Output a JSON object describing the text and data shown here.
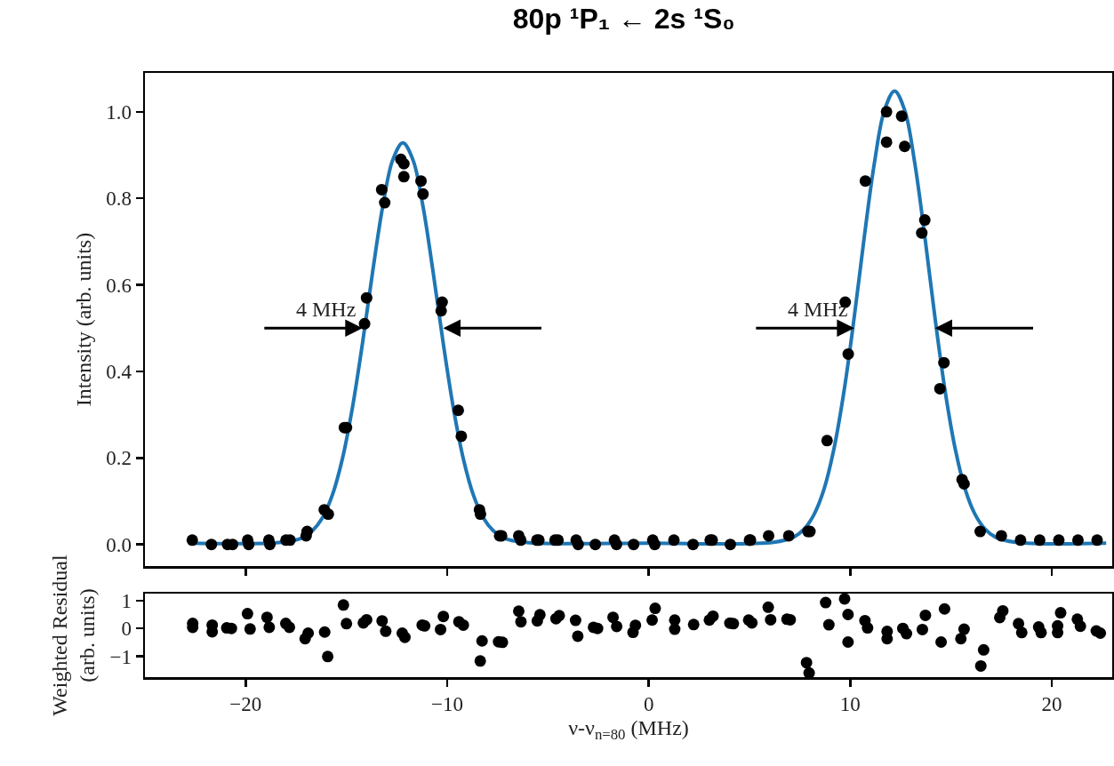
{
  "chart_data": [
    {
      "type": "scatter",
      "title": "80p ¹P₁ ← 2s ¹S₀",
      "ylabel": "Intensity (arb. units)",
      "xlim": [
        -25,
        23
      ],
      "xticks": [
        {
          "value": -20,
          "label": null
        },
        {
          "value": -10,
          "label": null
        },
        {
          "value": 0,
          "label": null
        },
        {
          "value": 10,
          "label": null
        },
        {
          "value": 20,
          "label": null
        }
      ],
      "ylim": [
        -0.05,
        1.09
      ],
      "yticks": [
        {
          "value": 0,
          "label": "0.0"
        },
        {
          "value": 0.2,
          "label": "0.2"
        },
        {
          "value": 0.4,
          "label": "0.4"
        },
        {
          "value": 0.6,
          "label": "0.6"
        },
        {
          "value": 0.8,
          "label": "0.8"
        },
        {
          "value": 1,
          "label": "1.0"
        }
      ],
      "tick_labels": "y",
      "grid": false,
      "annotations": [
        {
          "text": "4 MHz",
          "x": -14.2,
          "y": 0.5
        },
        {
          "text": "4 MHz",
          "x": 10.2,
          "y": 0.5
        }
      ],
      "series": [
        {
          "marker": "circle",
          "color": "#000000",
          "x": [
            -22.65,
            -21.7,
            -20.9,
            -20.65,
            -19.9,
            -19.85,
            -18.85,
            -18.8,
            -18.0,
            -17.8,
            -17.0,
            -16.95,
            -16.1,
            -15.9,
            -15.1,
            -15.0,
            -14.1,
            -14.0,
            -13.25,
            -13.1,
            -12.3,
            -12.15,
            -12.15,
            -11.3,
            -11.2,
            -10.3,
            -10.25,
            -9.45,
            -9.3,
            -8.4,
            -8.35,
            -7.4,
            -7.3,
            -6.45,
            -6.35,
            -5.55,
            -5.45,
            -4.65,
            -4.5,
            -3.6,
            -3.5,
            -2.65,
            -1.7,
            -1.6,
            -0.75,
            0.2,
            0.3,
            1.25,
            2.2,
            3.05,
            3.15,
            4.05,
            5.0,
            5.05,
            5.95,
            6.95,
            7.9,
            8.0,
            8.85,
            9.75,
            9.9,
            10.75,
            11.8,
            11.8,
            12.55,
            12.7,
            13.55,
            13.7,
            14.45,
            14.65,
            15.55,
            15.65,
            16.45,
            17.5,
            18.45,
            19.4,
            20.35,
            21.3,
            22.25
          ],
          "values": [
            0.01,
            0.0,
            0.0,
            0.0,
            0.01,
            0.0,
            0.01,
            0.0,
            0.01,
            0.01,
            0.02,
            0.03,
            0.08,
            0.07,
            0.27,
            0.27,
            0.51,
            0.57,
            0.82,
            0.79,
            0.89,
            0.88,
            0.85,
            0.84,
            0.81,
            0.54,
            0.56,
            0.31,
            0.25,
            0.08,
            0.07,
            0.02,
            0.02,
            0.02,
            0.01,
            0.01,
            0.01,
            0.01,
            0.01,
            0.01,
            0.0,
            0.0,
            0.01,
            0.0,
            0.0,
            0.01,
            0.0,
            0.01,
            0.0,
            0.01,
            0.01,
            0.0,
            0.01,
            0.01,
            0.02,
            0.02,
            0.03,
            0.03,
            0.24,
            0.56,
            0.44,
            0.84,
            1.0,
            0.93,
            0.99,
            0.92,
            0.72,
            0.75,
            0.36,
            0.42,
            0.15,
            0.14,
            0.03,
            0.02,
            0.01,
            0.01,
            0.01,
            0.01,
            0.01
          ]
        },
        {
          "type": "line",
          "color": "#1f77b4",
          "x": [
            -22.7,
            -18.2,
            -17.2,
            -16.7,
            -16.2,
            -15.7,
            -15.2,
            -14.7,
            -14.2,
            -13.7,
            -13.2,
            -12.7,
            -12.2,
            -11.7,
            -11.2,
            -10.7,
            -10.2,
            -9.7,
            -9.2,
            -8.7,
            -8.2,
            -7.7,
            -7.2,
            -6.2,
            0,
            6.2,
            7.2,
            7.7,
            8.2,
            8.7,
            9.2,
            9.7,
            10.2,
            10.7,
            11.2,
            11.7,
            12.2,
            12.7,
            13.2,
            13.7,
            14.2,
            14.7,
            15.2,
            15.7,
            16.2,
            16.7,
            17.2,
            18.2,
            22.7
          ],
          "values": [
            0.003,
            0.005,
            0.015,
            0.031,
            0.061,
            0.114,
            0.198,
            0.317,
            0.466,
            0.63,
            0.781,
            0.889,
            0.928,
            0.889,
            0.781,
            0.63,
            0.466,
            0.317,
            0.198,
            0.114,
            0.061,
            0.031,
            0.015,
            0.005,
            0.003,
            0.005,
            0.017,
            0.035,
            0.069,
            0.128,
            0.223,
            0.357,
            0.526,
            0.712,
            0.882,
            1.004,
            1.048,
            1.004,
            0.882,
            0.712,
            0.526,
            0.357,
            0.223,
            0.128,
            0.069,
            0.035,
            0.017,
            0.005,
            0.003
          ]
        }
      ]
    },
    {
      "type": "scatter",
      "xlabel": "ν-ν$_{n=80}$ (MHz)",
      "ylabel": "Weighted Residual\n(arb. units)",
      "xlim": [
        -25,
        23
      ],
      "xticks": [
        {
          "value": -20,
          "label": "−20"
        },
        {
          "value": -10,
          "label": "−10"
        },
        0,
        10,
        20
      ],
      "ylim": [
        -1.75,
        1.25
      ],
      "yticks": [
        {
          "value": -1,
          "label": "−1"
        },
        0,
        1
      ],
      "grid": false,
      "marker": "circle",
      "series": [
        {
          "color": "#000000",
          "x": [
            -22.63,
            -22.63,
            -21.66,
            -21.66,
            -20.94,
            -20.71,
            -19.91,
            -19.78,
            -18.94,
            -18.83,
            -18.01,
            -17.83,
            -17.05,
            -16.9,
            -16.08,
            -15.93,
            -15.15,
            -15.0,
            -14.16,
            -14.0,
            -13.23,
            -13.05,
            -12.23,
            -12.1,
            -11.24,
            -11.12,
            -10.19,
            -10.33,
            -9.42,
            -9.2,
            -8.27,
            -8.36,
            -7.45,
            -7.26,
            -6.45,
            -6.34,
            -5.4,
            -5.53,
            -4.44,
            -4.6,
            -3.63,
            -3.52,
            -2.74,
            -2.54,
            -1.77,
            -1.59,
            -0.66,
            -0.78,
            0.32,
            0.17,
            1.29,
            1.29,
            2.23,
            3.01,
            3.19,
            4.03,
            4.2,
            4.96,
            5.12,
            5.93,
            6.05,
            6.86,
            7.02,
            7.83,
            7.96,
            8.78,
            8.94,
            9.72,
            9.89,
            9.89,
            10.73,
            10.86,
            11.83,
            11.83,
            12.61,
            12.79,
            13.73,
            13.58,
            14.68,
            14.51,
            15.65,
            15.49,
            16.62,
            16.48,
            17.57,
            17.42,
            18.35,
            18.51,
            19.35,
            19.47,
            20.44,
            20.29,
            20.29,
            21.27,
            21.42,
            22.21,
            22.41
          ],
          "values": [
            0.18,
            0.04,
            0.12,
            -0.12,
            0.02,
            0.0,
            0.53,
            -0.02,
            0.4,
            0.04,
            0.18,
            0.04,
            -0.37,
            -0.17,
            -0.13,
            -1.01,
            0.84,
            0.17,
            0.2,
            0.31,
            0.27,
            -0.1,
            -0.17,
            -0.32,
            0.12,
            0.09,
            0.43,
            -0.04,
            0.24,
            0.12,
            -0.45,
            -1.17,
            -0.48,
            -0.5,
            0.62,
            0.24,
            0.49,
            0.27,
            0.46,
            0.35,
            0.29,
            -0.28,
            0.04,
            0.0,
            0.4,
            0.07,
            0.11,
            -0.14,
            0.72,
            0.3,
            0.3,
            -0.03,
            0.14,
            0.3,
            0.44,
            0.19,
            0.17,
            0.3,
            0.2,
            0.76,
            0.31,
            0.33,
            0.31,
            -1.23,
            -1.6,
            0.93,
            0.13,
            1.06,
            0.5,
            -0.49,
            0.28,
            0.02,
            -0.11,
            -0.37,
            0.0,
            -0.19,
            0.47,
            -0.04,
            0.7,
            -0.49,
            -0.03,
            -0.37,
            -0.77,
            -1.35,
            0.63,
            0.39,
            0.17,
            -0.15,
            0.05,
            -0.15,
            0.56,
            0.09,
            -0.15,
            0.33,
            0.08,
            -0.09,
            -0.17
          ]
        }
      ]
    }
  ]
}
